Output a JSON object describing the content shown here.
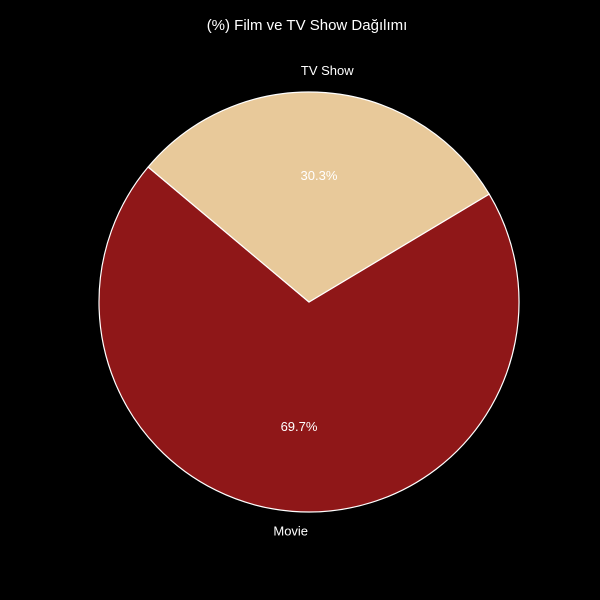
{
  "chart_data": {
    "type": "pie",
    "title": "(%) Film ve TV Show Dağılımı",
    "slices": [
      {
        "label": "Movie",
        "value": 69.7,
        "pct_label": "69.7%",
        "color": "#8f1718"
      },
      {
        "label": "TV Show",
        "value": 30.3,
        "pct_label": "30.3%",
        "color": "#e8c99a"
      }
    ],
    "edge_color": "#ffffff",
    "background": "#000000"
  }
}
